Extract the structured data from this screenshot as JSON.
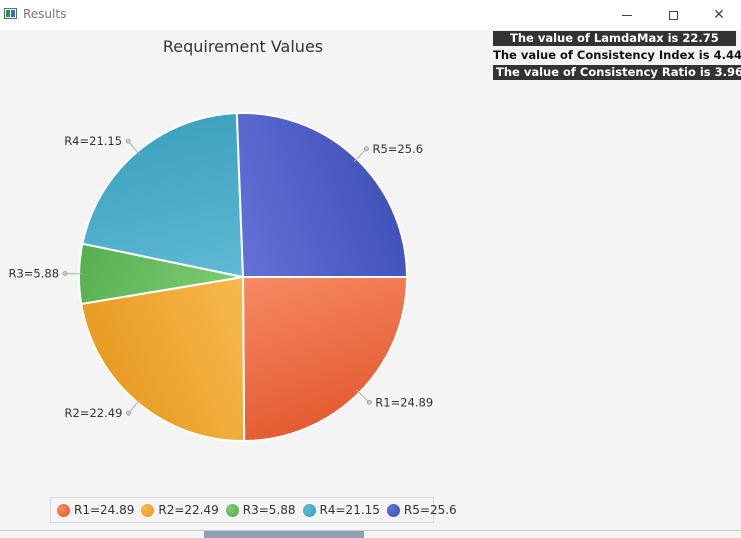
{
  "window": {
    "title": "Results"
  },
  "stats": [
    "The value of LamdaMax is 22.75",
    "The value of Consistency Index is 4.44",
    "The value of Consistency Ratio is 3.96"
  ],
  "chart_data": {
    "type": "pie",
    "title": "Requirement Values",
    "labels": [
      "R1=24.89",
      "R2=22.49",
      "R3=5.88",
      "R4=21.15",
      "R5=25.6"
    ],
    "values": [
      24.89,
      22.49,
      5.88,
      21.15,
      25.6
    ],
    "colors": [
      "#e2562b",
      "#e6981e",
      "#4faa4c",
      "#3a9fbd",
      "#3d4fb8"
    ],
    "light_colors": [
      "#f78a64",
      "#f7b94d",
      "#7fcd73",
      "#5fbad4",
      "#6571d6"
    ],
    "legend": [
      "R1=24.89",
      "R2=22.49",
      "R3=5.88",
      "R4=21.15",
      "R5=25.6"
    ],
    "legend_position": "bottom"
  }
}
